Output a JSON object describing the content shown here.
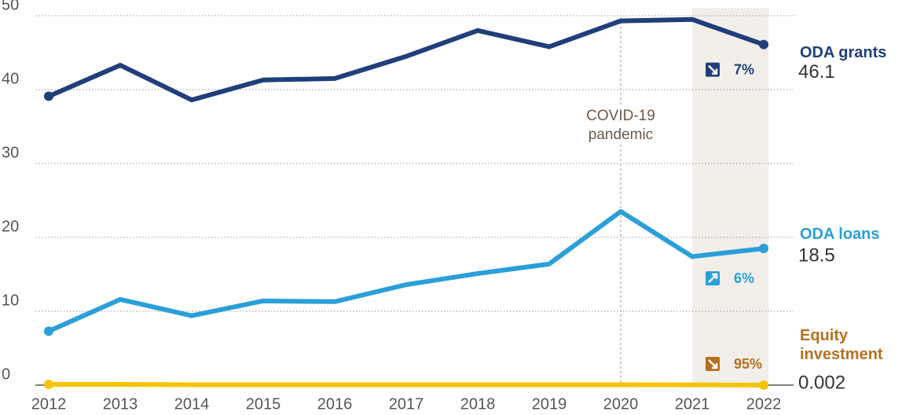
{
  "chart_data": {
    "type": "line",
    "x": [
      2012,
      2013,
      2014,
      2015,
      2016,
      2017,
      2018,
      2019,
      2020,
      2021,
      2022
    ],
    "xlim": [
      2012,
      2022
    ],
    "xticks": [
      2012,
      2013,
      2014,
      2015,
      2016,
      2017,
      2018,
      2019,
      2020,
      2021,
      2022
    ],
    "ylim": [
      0,
      50
    ],
    "yticks": [
      0,
      10,
      20,
      30,
      40,
      50
    ],
    "grid": true,
    "highlight": [
      2021,
      2022
    ],
    "annotations": [
      {
        "text": "COVID-19 pandemic",
        "x": 2020
      }
    ],
    "series": [
      {
        "name": "ODA grants",
        "color": "#1f3f7a",
        "label_color": "#1f3f7a",
        "values": [
          39.1,
          43.3,
          38.6,
          41.3,
          41.5,
          44.5,
          48.0,
          45.8,
          49.3,
          49.5,
          46.1
        ],
        "change": -7,
        "change_label": "7%"
      },
      {
        "name": "ODA loans",
        "color": "#2a9fd8",
        "label_color": "#2a9fd8",
        "values": [
          7.3,
          11.6,
          9.4,
          11.4,
          11.3,
          13.6,
          15.1,
          16.4,
          23.5,
          17.4,
          18.5
        ],
        "change": 6,
        "change_label": "6%"
      },
      {
        "name": "Equity investment",
        "color": "#f5c400",
        "label_color": "#b5711e",
        "values": [
          0.1,
          0.1,
          0.05,
          0.05,
          0.05,
          0.05,
          0.05,
          0.05,
          0.05,
          0.04,
          0.002
        ],
        "change": -95,
        "change_label": "95%"
      }
    ]
  }
}
